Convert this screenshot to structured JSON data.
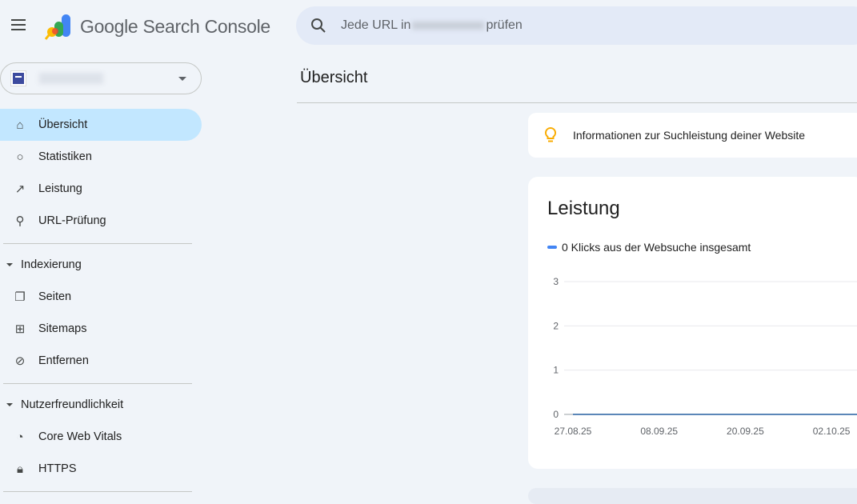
{
  "header": {
    "brand": "Google Search Console",
    "search_prefix": "Jede URL in",
    "search_suffix": "prüfen"
  },
  "page_title": "Übersicht",
  "sidebar": {
    "items": [
      {
        "label": "Übersicht",
        "icon": "home-icon",
        "active": true
      },
      {
        "label": "Statistiken",
        "icon": "lightbulb-icon"
      },
      {
        "label": "Leistung",
        "icon": "trending-up-icon"
      },
      {
        "label": "URL-Prüfung",
        "icon": "search-icon"
      }
    ],
    "indexing": {
      "label": "Indexierung",
      "items": [
        {
          "label": "Seiten",
          "icon": "pages-icon"
        },
        {
          "label": "Sitemaps",
          "icon": "sitemap-icon"
        },
        {
          "label": "Entfernen",
          "icon": "visibility-off-icon"
        }
      ]
    },
    "ux": {
      "label": "Nutzerfreundlichkeit",
      "items": [
        {
          "label": "Core Web Vitals",
          "icon": "speed-icon"
        },
        {
          "label": "HTTPS",
          "icon": "lock-icon"
        }
      ]
    }
  },
  "info_banner": "Informationen zur Suchleistung deiner Website",
  "performance": {
    "title": "Leistung",
    "legend": "0 Klicks aus der Websuche insgesamt"
  },
  "chart_data": {
    "type": "line",
    "series": [
      {
        "name": "0 Klicks aus der Websuche insgesamt",
        "color": "#4285f4",
        "x": [
          "27.08.25",
          "08.09.25",
          "20.09.25",
          "02.10.25"
        ],
        "values": [
          0,
          0,
          0,
          0
        ]
      }
    ],
    "x_ticks": [
      "27.08.25",
      "08.09.25",
      "20.09.25",
      "02.10.25"
    ],
    "y_ticks": [
      0,
      1,
      2,
      3
    ],
    "ylim": [
      0,
      3
    ],
    "grid": true
  }
}
